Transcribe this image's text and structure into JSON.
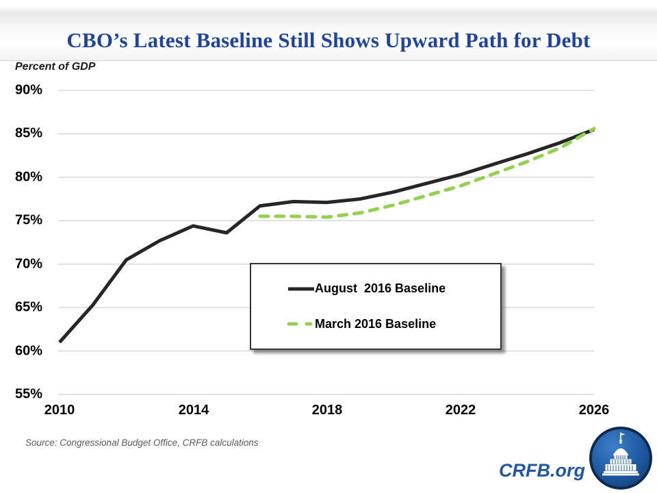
{
  "header": {
    "title": "CBO’s Latest Baseline Still Shows Upward Path for Debt"
  },
  "chart_data": {
    "type": "line",
    "title": "CBO’s Latest Baseline Still Shows Upward Path for Debt",
    "ylabel": "Percent of GDP",
    "xlabel": "",
    "ylim": [
      55,
      90
    ],
    "xlim": [
      2010,
      2026
    ],
    "ytick_step": 5,
    "ytick_labels": [
      "90%",
      "85%",
      "80%",
      "75%",
      "70%",
      "65%",
      "60%",
      "55%"
    ],
    "xtick_labels": [
      "2010",
      "2014",
      "2018",
      "2022",
      "2026"
    ],
    "xtick_years": [
      2010,
      2014,
      2018,
      2022,
      2026
    ],
    "grid": true,
    "legend_position": "center-bottom-box",
    "series": [
      {
        "name": "August  2016 Baseline",
        "style": "solid",
        "color": "#262626",
        "x": [
          2010,
          2011,
          2012,
          2013,
          2014,
          2015,
          2016,
          2017,
          2018,
          2019,
          2020,
          2021,
          2022,
          2023,
          2024,
          2025,
          2026
        ],
        "values": [
          61.0,
          65.3,
          70.5,
          72.7,
          74.4,
          73.6,
          76.7,
          77.2,
          77.1,
          77.5,
          78.3,
          79.3,
          80.3,
          81.5,
          82.7,
          84.0,
          85.5
        ]
      },
      {
        "name": "March 2016 Baseline",
        "style": "dashed",
        "color": "#92d050",
        "x": [
          2016,
          2017,
          2018,
          2019,
          2020,
          2021,
          2022,
          2023,
          2024,
          2025,
          2026
        ],
        "values": [
          75.5,
          75.5,
          75.4,
          75.9,
          76.8,
          77.9,
          79.0,
          80.4,
          81.8,
          83.4,
          85.6
        ]
      }
    ]
  },
  "footer": {
    "source": "Source: Congressional Budget Office, CRFB calculations",
    "site": "CRFB.org",
    "logo": "capitol-icon"
  },
  "colors": {
    "title_blue": "#1f44a0",
    "crfb_blue": "#2156a5",
    "august_black": "#262626",
    "march_green": "#92d050",
    "gridline": "#c6c6c6",
    "source_gray": "#595959"
  }
}
